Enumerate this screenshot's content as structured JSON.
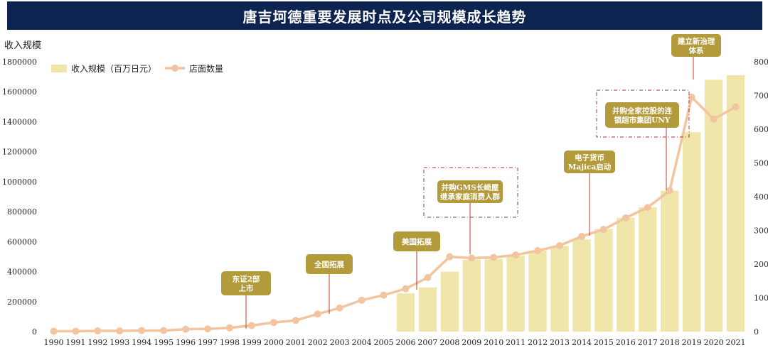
{
  "title": "唐吉坷德重要发展时点及公司规模成长趋势",
  "colors": {
    "title_bg": "#0d2350",
    "bar": "#f0e6aa",
    "line": "#f2c4a0",
    "annotation_bg": "#b39a3a",
    "annotation_line": "#c0392b",
    "dash_box": "#a0304a"
  },
  "chart_data": {
    "type": "bar+line",
    "categories": [
      "1990",
      "1991",
      "1992",
      "1993",
      "1994",
      "1995",
      "1996",
      "1997",
      "1998",
      "1999",
      "2000",
      "2001",
      "2002",
      "2003",
      "2004",
      "2005",
      "2006",
      "2007",
      "2008",
      "2009",
      "2010",
      "2011",
      "2012",
      "2013",
      "2014",
      "2015",
      "2016",
      "2017",
      "2018",
      "2019",
      "2020",
      "2021"
    ],
    "left_axis": {
      "label": "收入规模",
      "ylim": [
        0,
        1800000
      ],
      "ticks": [
        "0",
        "200000",
        "400000",
        "600000",
        "800000",
        "1000000",
        "1200000",
        "1400000",
        "1600000",
        "1800000"
      ]
    },
    "right_axis": {
      "ylim": [
        0,
        800
      ],
      "ticks": [
        "0",
        "100",
        "200",
        "300",
        "400",
        "500",
        "600",
        "700",
        "800"
      ]
    },
    "series": [
      {
        "name": "收入规模（百万日元）",
        "type": "bar",
        "axis": "left",
        "values": [
          null,
          null,
          null,
          null,
          null,
          null,
          null,
          null,
          null,
          null,
          null,
          null,
          null,
          null,
          null,
          null,
          255000,
          295000,
          400000,
          480000,
          485000,
          505000,
          540000,
          570000,
          615000,
          685000,
          760000,
          830000,
          940000,
          1330000,
          1680000,
          1710000
        ]
      },
      {
        "name": "店面数量",
        "type": "line",
        "axis": "right",
        "values": [
          1,
          1,
          2,
          2,
          3,
          3,
          7,
          8,
          11,
          18,
          27,
          33,
          52,
          70,
          93,
          108,
          127,
          160,
          222,
          218,
          220,
          227,
          240,
          255,
          282,
          303,
          337,
          368,
          418,
          695,
          630,
          666
        ]
      }
    ],
    "annotations": [
      {
        "lines": [
          "东证2部",
          "上市"
        ],
        "year": "1998"
      },
      {
        "lines": [
          "全国拓展"
        ],
        "year": "2002"
      },
      {
        "lines": [
          "美国拓展"
        ],
        "year": "2006"
      },
      {
        "lines": [
          "并购GMS长崎屋",
          "继承家庭消费人群"
        ],
        "year": "2008"
      },
      {
        "lines": [
          "电子货币",
          "Majica启动"
        ],
        "year": "2014"
      },
      {
        "lines": [
          "并购全家控股的连",
          "锁超市集团UNY"
        ],
        "year": "2018"
      },
      {
        "lines": [
          "建立新治理",
          "体系"
        ],
        "year": "2020"
      }
    ]
  }
}
